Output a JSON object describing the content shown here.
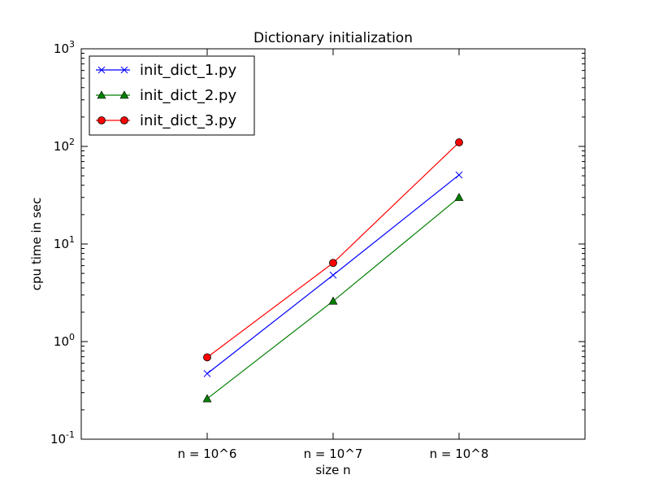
{
  "chart_data": {
    "type": "line",
    "title": "Dictionary initialization",
    "xlabel": "size n",
    "ylabel": "cpu time in sec",
    "categories": [
      "n = 10^6",
      "n = 10^7",
      "n = 10^8"
    ],
    "y_scale": "log",
    "ylim": [
      0.1,
      1000
    ],
    "y_ticks": [
      {
        "value": 0.1,
        "base": "10",
        "exp": "-1"
      },
      {
        "value": 1,
        "base": "10",
        "exp": "0"
      },
      {
        "value": 10,
        "base": "10",
        "exp": "1"
      },
      {
        "value": 100,
        "base": "10",
        "exp": "2"
      },
      {
        "value": 1000,
        "base": "10",
        "exp": "3"
      }
    ],
    "grid": false,
    "legend_position": "top-left",
    "series": [
      {
        "name": "init_dict_1.py",
        "values": [
          0.47,
          4.8,
          51
        ],
        "color": "#0000ff",
        "marker": "x"
      },
      {
        "name": "init_dict_2.py",
        "values": [
          0.26,
          2.6,
          30
        ],
        "color": "#007f00",
        "marker": "triangle"
      },
      {
        "name": "init_dict_3.py",
        "values": [
          0.69,
          6.4,
          110
        ],
        "color": "#ff0000",
        "marker": "circle"
      }
    ]
  }
}
